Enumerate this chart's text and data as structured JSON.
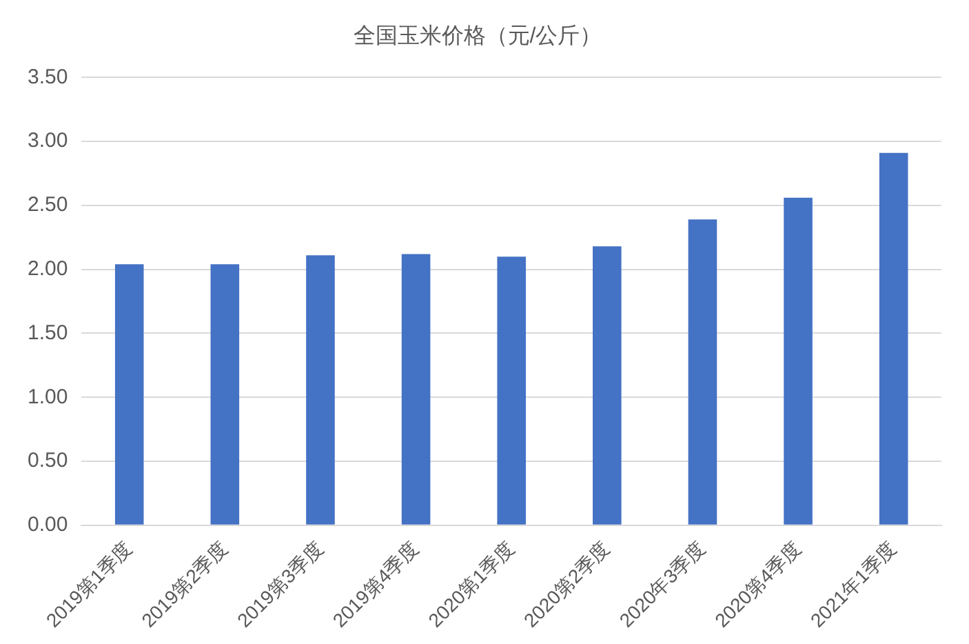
{
  "chart_data": {
    "type": "bar",
    "title": "全国玉米价格（元/公斤）",
    "categories": [
      "2019第1季度",
      "2019第2季度",
      "2019第3季度",
      "2019第4季度",
      "2020第1季度",
      "2020第2季度",
      "2020年3季度",
      "2020第4季度",
      "2021年1季度"
    ],
    "values": [
      2.04,
      2.04,
      2.11,
      2.12,
      2.1,
      2.18,
      2.39,
      2.56,
      2.91
    ],
    "color": "#4472c4",
    "ylim": [
      0,
      3.5
    ],
    "yticks": [
      {
        "value": 0,
        "label": "0.00"
      },
      {
        "value": 0.5,
        "label": "0.50"
      },
      {
        "value": 1,
        "label": "1.00"
      },
      {
        "value": 1.5,
        "label": "1.50"
      },
      {
        "value": 2,
        "label": "2.00"
      },
      {
        "value": 2.5,
        "label": "2.50"
      },
      {
        "value": 3,
        "label": "3.00"
      },
      {
        "value": 3.5,
        "label": "3.50"
      }
    ],
    "grid": "y"
  }
}
